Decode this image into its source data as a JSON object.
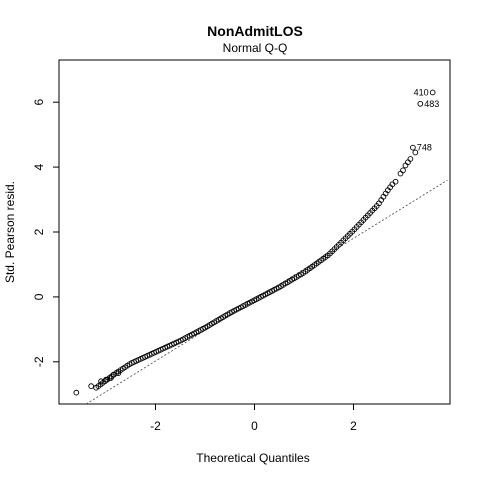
{
  "chart_data": {
    "type": "scatter",
    "title": "NonAdmitLOS",
    "subtitle": "Normal Q-Q",
    "xlabel": "Theoretical Quantiles",
    "ylabel": "Std. Pearson resid.",
    "xlim": [
      -3.95,
      3.95
    ],
    "ylim": [
      -3.3,
      7.3
    ],
    "xticks": [
      -2,
      0,
      2
    ],
    "xtick_labels": [
      "-2",
      "0",
      "2"
    ],
    "yticks": [
      -2,
      0,
      2,
      4,
      6
    ],
    "ytick_labels": [
      "-2",
      "0",
      "2",
      "4",
      "6"
    ],
    "grid": false,
    "reference_line": {
      "style": "dotted",
      "points": [
        [
          -3.4,
          -3.3
        ],
        [
          3.9,
          3.6
        ]
      ]
    },
    "curve": {
      "description": "dense sample quantiles of standardized residuals",
      "anchor_points": [
        [
          -3.2,
          -2.8
        ],
        [
          -2.8,
          -2.35
        ],
        [
          -2.5,
          -2.05
        ],
        [
          -2.0,
          -1.7
        ],
        [
          -1.5,
          -1.35
        ],
        [
          -1.0,
          -0.95
        ],
        [
          -0.5,
          -0.5
        ],
        [
          0.0,
          -0.1
        ],
        [
          0.5,
          0.3
        ],
        [
          1.0,
          0.75
        ],
        [
          1.5,
          1.3
        ],
        [
          2.0,
          2.05
        ],
        [
          2.5,
          2.85
        ],
        [
          2.7,
          3.3
        ],
        [
          2.8,
          3.5
        ]
      ]
    },
    "sparse_points": [
      [
        -3.6,
        -2.95
      ],
      [
        -3.3,
        -2.75
      ],
      [
        -3.1,
        -2.6
      ],
      [
        -3.0,
        -2.55
      ],
      [
        -2.9,
        -2.5
      ],
      [
        -2.85,
        -2.4
      ],
      [
        -2.75,
        -2.35
      ],
      [
        2.85,
        3.55
      ],
      [
        2.95,
        3.8
      ],
      [
        3.0,
        3.9
      ],
      [
        3.05,
        4.05
      ],
      [
        3.1,
        4.15
      ],
      [
        3.15,
        4.25
      ],
      [
        3.25,
        4.45
      ]
    ],
    "labeled_points": [
      {
        "label": "410",
        "x": 3.6,
        "y": 6.3
      },
      {
        "label": "483",
        "x": 3.35,
        "y": 5.95
      },
      {
        "label": "748",
        "x": 3.2,
        "y": 4.6
      }
    ]
  }
}
